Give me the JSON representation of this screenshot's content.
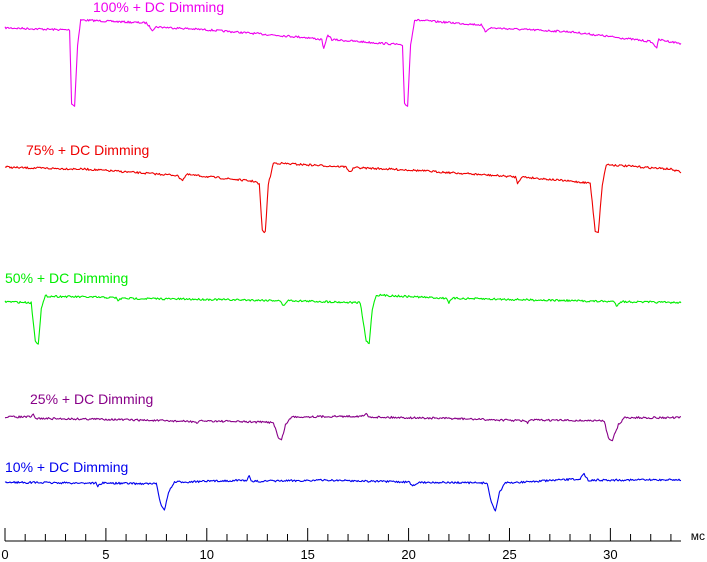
{
  "chart_data": {
    "type": "line",
    "title": "",
    "xlabel": "",
    "ylabel": "",
    "x_unit": "мс",
    "xlim": [
      0,
      33.5
    ],
    "x_ticks": [
      0,
      5,
      10,
      15,
      20,
      25,
      30
    ],
    "x_tick_labels": [
      "0",
      "5",
      "10",
      "15",
      "20",
      "25",
      "30"
    ],
    "grid": false,
    "legend": "none (series labelled inline)",
    "series": [
      {
        "name": "100% + DC Dimming",
        "color": "#ee00ee",
        "points": [
          [
            0,
            0.92
          ],
          [
            2.9,
            0.9
          ],
          [
            3.2,
            0.9
          ],
          [
            3.3,
            0.15
          ],
          [
            3.45,
            0.12
          ],
          [
            3.6,
            0.75
          ],
          [
            3.75,
            1.0
          ],
          [
            7.0,
            0.97
          ],
          [
            7.3,
            0.9
          ],
          [
            7.5,
            0.93
          ],
          [
            10.0,
            0.9
          ],
          [
            15.0,
            0.82
          ],
          [
            15.7,
            0.8
          ],
          [
            15.8,
            0.7
          ],
          [
            16.0,
            0.85
          ],
          [
            16.2,
            0.8
          ],
          [
            19.5,
            0.75
          ],
          [
            19.7,
            0.73
          ],
          [
            19.8,
            0.15
          ],
          [
            19.95,
            0.12
          ],
          [
            20.1,
            0.75
          ],
          [
            20.3,
            1.0
          ],
          [
            23.6,
            0.95
          ],
          [
            23.8,
            0.88
          ],
          [
            24.0,
            0.92
          ],
          [
            28.0,
            0.88
          ],
          [
            32.0,
            0.78
          ],
          [
            32.3,
            0.72
          ],
          [
            32.4,
            0.8
          ],
          [
            33.5,
            0.76
          ]
        ]
      },
      {
        "name": "75% + DC Dimming",
        "color": "#ee0000",
        "points": [
          [
            0,
            0.95
          ],
          [
            0.5,
            0.94
          ],
          [
            4.0,
            0.92
          ],
          [
            8.5,
            0.84
          ],
          [
            8.8,
            0.78
          ],
          [
            9.0,
            0.85
          ],
          [
            12.4,
            0.76
          ],
          [
            12.6,
            0.72
          ],
          [
            12.75,
            0.12
          ],
          [
            12.9,
            0.1
          ],
          [
            13.05,
            0.72
          ],
          [
            13.3,
            1.0
          ],
          [
            16.9,
            0.95
          ],
          [
            17.1,
            0.88
          ],
          [
            17.3,
            0.94
          ],
          [
            20.0,
            0.91
          ],
          [
            25.3,
            0.82
          ],
          [
            25.4,
            0.74
          ],
          [
            25.6,
            0.82
          ],
          [
            29.0,
            0.74
          ],
          [
            29.25,
            0.12
          ],
          [
            29.4,
            0.1
          ],
          [
            29.6,
            0.72
          ],
          [
            29.8,
            0.98
          ],
          [
            33.0,
            0.92
          ],
          [
            33.5,
            0.88
          ]
        ]
      },
      {
        "name": "50% + DC Dimming",
        "color": "#00ee00",
        "points": [
          [
            0,
            0.88
          ],
          [
            1.3,
            0.86
          ],
          [
            1.5,
            0.16
          ],
          [
            1.65,
            0.12
          ],
          [
            1.8,
            0.75
          ],
          [
            2.0,
            0.98
          ],
          [
            5.5,
            0.95
          ],
          [
            5.6,
            0.9
          ],
          [
            5.8,
            0.94
          ],
          [
            10.0,
            0.92
          ],
          [
            13.6,
            0.9
          ],
          [
            13.8,
            0.8
          ],
          [
            14.0,
            0.9
          ],
          [
            17.6,
            0.86
          ],
          [
            17.9,
            0.16
          ],
          [
            18.05,
            0.12
          ],
          [
            18.2,
            0.75
          ],
          [
            18.4,
            1.0
          ],
          [
            21.9,
            0.94
          ],
          [
            22.0,
            0.86
          ],
          [
            22.2,
            0.94
          ],
          [
            25.0,
            0.92
          ],
          [
            30.2,
            0.88
          ],
          [
            30.3,
            0.8
          ],
          [
            30.5,
            0.88
          ],
          [
            33.5,
            0.86
          ]
        ]
      },
      {
        "name": "25% + DC Dimming",
        "color": "#880088",
        "points": [
          [
            0,
            0.9
          ],
          [
            1.3,
            0.9
          ],
          [
            1.4,
            0.96
          ],
          [
            1.5,
            0.86
          ],
          [
            5.0,
            0.84
          ],
          [
            9.4,
            0.78
          ],
          [
            9.5,
            0.72
          ],
          [
            9.7,
            0.8
          ],
          [
            13.3,
            0.76
          ],
          [
            13.55,
            0.36
          ],
          [
            13.7,
            0.3
          ],
          [
            13.9,
            0.7
          ],
          [
            14.2,
            0.9
          ],
          [
            17.8,
            0.92
          ],
          [
            17.9,
            1.0
          ],
          [
            18.0,
            0.9
          ],
          [
            22.0,
            0.86
          ],
          [
            25.8,
            0.8
          ],
          [
            25.9,
            0.72
          ],
          [
            26.0,
            0.82
          ],
          [
            29.7,
            0.8
          ],
          [
            29.9,
            0.36
          ],
          [
            30.1,
            0.3
          ],
          [
            30.4,
            0.7
          ],
          [
            30.7,
            0.88
          ],
          [
            33.5,
            0.88
          ]
        ]
      },
      {
        "name": "10% + DC Dimming",
        "color": "#0000ee",
        "points": [
          [
            0,
            0.8
          ],
          [
            3.3,
            0.78
          ],
          [
            4.5,
            0.78
          ],
          [
            4.6,
            0.7
          ],
          [
            4.8,
            0.78
          ],
          [
            7.5,
            0.76
          ],
          [
            7.7,
            0.3
          ],
          [
            7.9,
            0.1
          ],
          [
            8.1,
            0.55
          ],
          [
            8.4,
            0.8
          ],
          [
            12.0,
            0.85
          ],
          [
            12.1,
            0.95
          ],
          [
            12.2,
            0.82
          ],
          [
            16.0,
            0.85
          ],
          [
            20.0,
            0.8
          ],
          [
            20.3,
            0.7
          ],
          [
            20.5,
            0.8
          ],
          [
            23.9,
            0.78
          ],
          [
            24.1,
            0.3
          ],
          [
            24.3,
            0.1
          ],
          [
            24.5,
            0.55
          ],
          [
            24.8,
            0.78
          ],
          [
            28.5,
            0.88
          ],
          [
            28.7,
            1.0
          ],
          [
            28.9,
            0.85
          ],
          [
            33.5,
            0.86
          ]
        ]
      }
    ]
  }
}
